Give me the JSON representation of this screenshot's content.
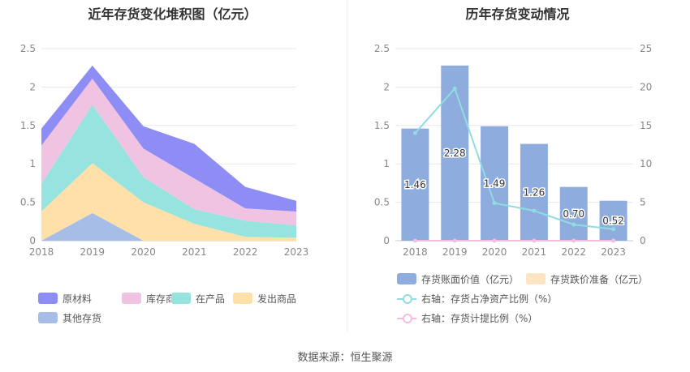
{
  "source": "数据来源：恒生聚源",
  "colors": {
    "raw": "#8d8df5",
    "stock": "#f0c3e2",
    "wip": "#97e3e0",
    "shipped": "#ffe0a9",
    "other": "#a6bde8",
    "bar": "#8eadde",
    "reserve": "#ffe4c4",
    "line_ratio": "#8fdde0",
    "line_provision": "#f2bde0"
  },
  "chart_data": [
    {
      "type": "area",
      "title": "近年存货变化堆积图（亿元）",
      "categories": [
        "2018",
        "2019",
        "2020",
        "2021",
        "2022",
        "2023"
      ],
      "ylim": [
        0,
        2.5
      ],
      "yticks": [
        "0",
        "0.5",
        "1",
        "1.5",
        "2",
        "2.5"
      ],
      "stacked": true,
      "series": [
        {
          "name": "其他存货",
          "values": [
            0.0,
            0.36,
            0.0,
            0.0,
            0.0,
            0.0
          ]
        },
        {
          "name": "发出商品",
          "values": [
            0.38,
            0.65,
            0.5,
            0.22,
            0.05,
            0.04
          ]
        },
        {
          "name": "在产品",
          "values": [
            0.36,
            0.76,
            0.33,
            0.19,
            0.21,
            0.16
          ]
        },
        {
          "name": "库存商品",
          "values": [
            0.5,
            0.34,
            0.37,
            0.4,
            0.16,
            0.18
          ]
        },
        {
          "name": "原材料",
          "values": [
            0.22,
            0.17,
            0.29,
            0.45,
            0.28,
            0.14
          ]
        }
      ],
      "legend": [
        "原材料",
        "库存商品",
        "在产品",
        "发出商品",
        "其他存货"
      ],
      "legend_position": "bottom-left",
      "grid": true
    },
    {
      "type": "bar",
      "title": "历年存货变动情况",
      "categories": [
        "2018",
        "2019",
        "2020",
        "2021",
        "2022",
        "2023"
      ],
      "ylim": [
        0,
        2.5
      ],
      "yticks": [
        "0",
        "0.5",
        "1",
        "1.5",
        "2",
        "2.5"
      ],
      "y2lim": [
        0,
        25
      ],
      "y2ticks": [
        "0",
        "5",
        "10",
        "15",
        "20",
        "25"
      ],
      "series": [
        {
          "name": "存货账面价值（亿元）",
          "type": "bar",
          "axis": "left",
          "values": [
            1.46,
            2.28,
            1.49,
            1.26,
            0.7,
            0.52
          ],
          "labels": [
            "1.46",
            "2.28",
            "1.49",
            "1.26",
            "0.70",
            "0.52"
          ]
        },
        {
          "name": "存货跌价准备（亿元）",
          "type": "bar",
          "axis": "left",
          "values": [
            0,
            0,
            0,
            0,
            0,
            0
          ]
        },
        {
          "name": "右轴：存货占净资产比例（%）",
          "type": "line",
          "axis": "right",
          "values": [
            14.0,
            19.8,
            4.9,
            3.9,
            2.1,
            1.5
          ]
        },
        {
          "name": "右轴：存货计提比例（%）",
          "type": "line",
          "axis": "right",
          "values": [
            0,
            0,
            0,
            0,
            0,
            0
          ]
        }
      ],
      "legend_position": "bottom",
      "grid": true
    }
  ]
}
